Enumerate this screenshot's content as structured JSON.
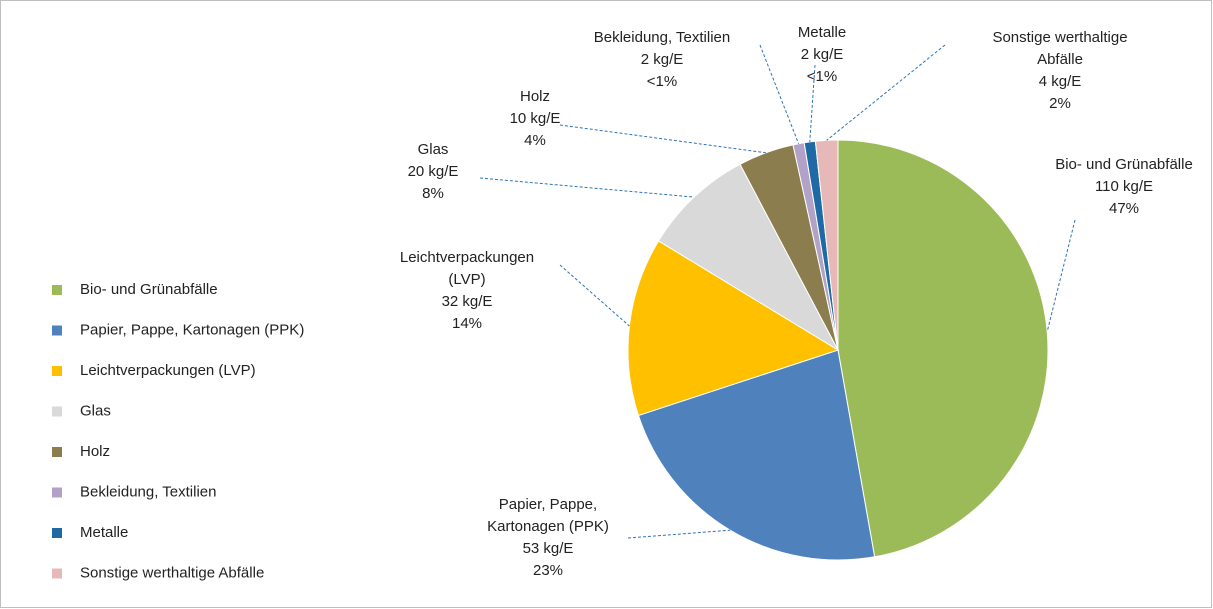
{
  "chart_data": {
    "type": "pie",
    "categories": [
      "Bio- und Grünabfälle",
      "Papier, Pappe, Kartonagen (PPK)",
      "Leichtverpackungen (LVP)",
      "Glas",
      "Holz",
      "Bekleidung, Textilien",
      "Metalle",
      "Sonstige werthaltige Abfälle"
    ],
    "label_lines": [
      [
        "Bio- und Grünabfälle"
      ],
      [
        "Papier, Pappe,",
        "Kartonagen (PPK)"
      ],
      [
        "Leichtverpackungen",
        "(LVP)"
      ],
      [
        "Glas"
      ],
      [
        "Holz"
      ],
      [
        "Bekleidung, Textilien"
      ],
      [
        "Metalle"
      ],
      [
        "Sonstige werthaltige",
        "Abfälle"
      ]
    ],
    "values": [
      110,
      53,
      32,
      20,
      10,
      2,
      2,
      4
    ],
    "value_labels": [
      "110 kg/E",
      "53 kg/E",
      "32 kg/E",
      "20 kg/E",
      "10 kg/E",
      "2 kg/E",
      "2 kg/E",
      "4 kg/E"
    ],
    "percent_labels": [
      "47%",
      "23%",
      "14%",
      "8%",
      "4%",
      "<1%",
      "<1%",
      "2%"
    ],
    "colors": [
      "#9bbb59",
      "#4f81bd",
      "#ffc000",
      "#d9d9d9",
      "#8c7d4f",
      "#b3a2c7",
      "#1f6aa5",
      "#e6b9b8"
    ],
    "legend": "left"
  }
}
